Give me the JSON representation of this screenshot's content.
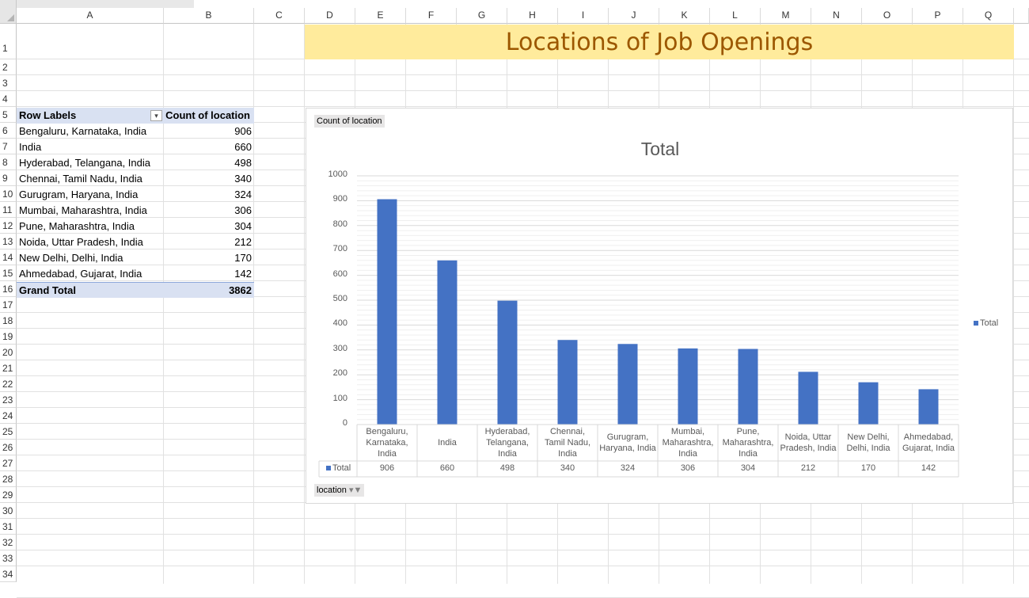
{
  "columns": [
    "A",
    "B",
    "C",
    "D",
    "E",
    "F",
    "G",
    "H",
    "I",
    "J",
    "K",
    "L",
    "M",
    "N",
    "O",
    "P",
    "Q"
  ],
  "rows": [
    "1",
    "2",
    "3",
    "4",
    "5",
    "6",
    "7",
    "8",
    "9",
    "10",
    "11",
    "12",
    "13",
    "14",
    "15",
    "16",
    "17",
    "18",
    "19",
    "20",
    "21",
    "22",
    "23",
    "24",
    "25",
    "26",
    "27",
    "28",
    "29",
    "30",
    "31",
    "32",
    "33",
    "34"
  ],
  "title": "Locations of Job Openings",
  "pivot": {
    "header_label": "Row Labels",
    "header_value": "Count of location",
    "rows": [
      {
        "label": "Bengaluru, Karnataka, India",
        "value": "906"
      },
      {
        "label": "India",
        "value": "660"
      },
      {
        "label": "Hyderabad, Telangana, India",
        "value": "498"
      },
      {
        "label": "Chennai, Tamil Nadu, India",
        "value": "340"
      },
      {
        "label": "Gurugram, Haryana, India",
        "value": "324"
      },
      {
        "label": "Mumbai, Maharashtra, India",
        "value": "306"
      },
      {
        "label": "Pune, Maharashtra, India",
        "value": "304"
      },
      {
        "label": "Noida, Uttar Pradesh, India",
        "value": "212"
      },
      {
        "label": "New Delhi, Delhi, India",
        "value": "170"
      },
      {
        "label": "Ahmedabad, Gujarat, India",
        "value": "142"
      }
    ],
    "total_label": "Grand Total",
    "total_value": "3862"
  },
  "chart": {
    "value_field_button": "Count of location",
    "axis_field_button": "location",
    "bar_color": "#4472c4"
  },
  "chart_data": {
    "type": "bar",
    "title": "Total",
    "categories": [
      [
        "Bengaluru,",
        "Karnataka,",
        "India"
      ],
      [
        "India"
      ],
      [
        "Hyderabad,",
        "Telangana,",
        "India"
      ],
      [
        "Chennai,",
        "Tamil Nadu,",
        "India"
      ],
      [
        "Gurugram,",
        "Haryana, India"
      ],
      [
        "Mumbai,",
        "Maharashtra,",
        "India"
      ],
      [
        "Pune,",
        "Maharashtra,",
        "India"
      ],
      [
        "Noida, Uttar",
        "Pradesh, India"
      ],
      [
        "New Delhi,",
        "Delhi, India"
      ],
      [
        "Ahmedabad,",
        "Gujarat, India"
      ]
    ],
    "series": [
      {
        "name": "Total",
        "values": [
          906,
          660,
          498,
          340,
          324,
          306,
          304,
          212,
          170,
          142
        ]
      }
    ],
    "ylim": [
      0,
      1000
    ],
    "yticks": [
      "0",
      "100",
      "200",
      "300",
      "400",
      "500",
      "600",
      "700",
      "800",
      "900",
      "1000"
    ],
    "data_table_values": [
      "906",
      "660",
      "498",
      "340",
      "324",
      "306",
      "304",
      "212",
      "170",
      "142"
    ],
    "legend": {
      "label": "Total",
      "position": "right"
    },
    "grid": true
  }
}
